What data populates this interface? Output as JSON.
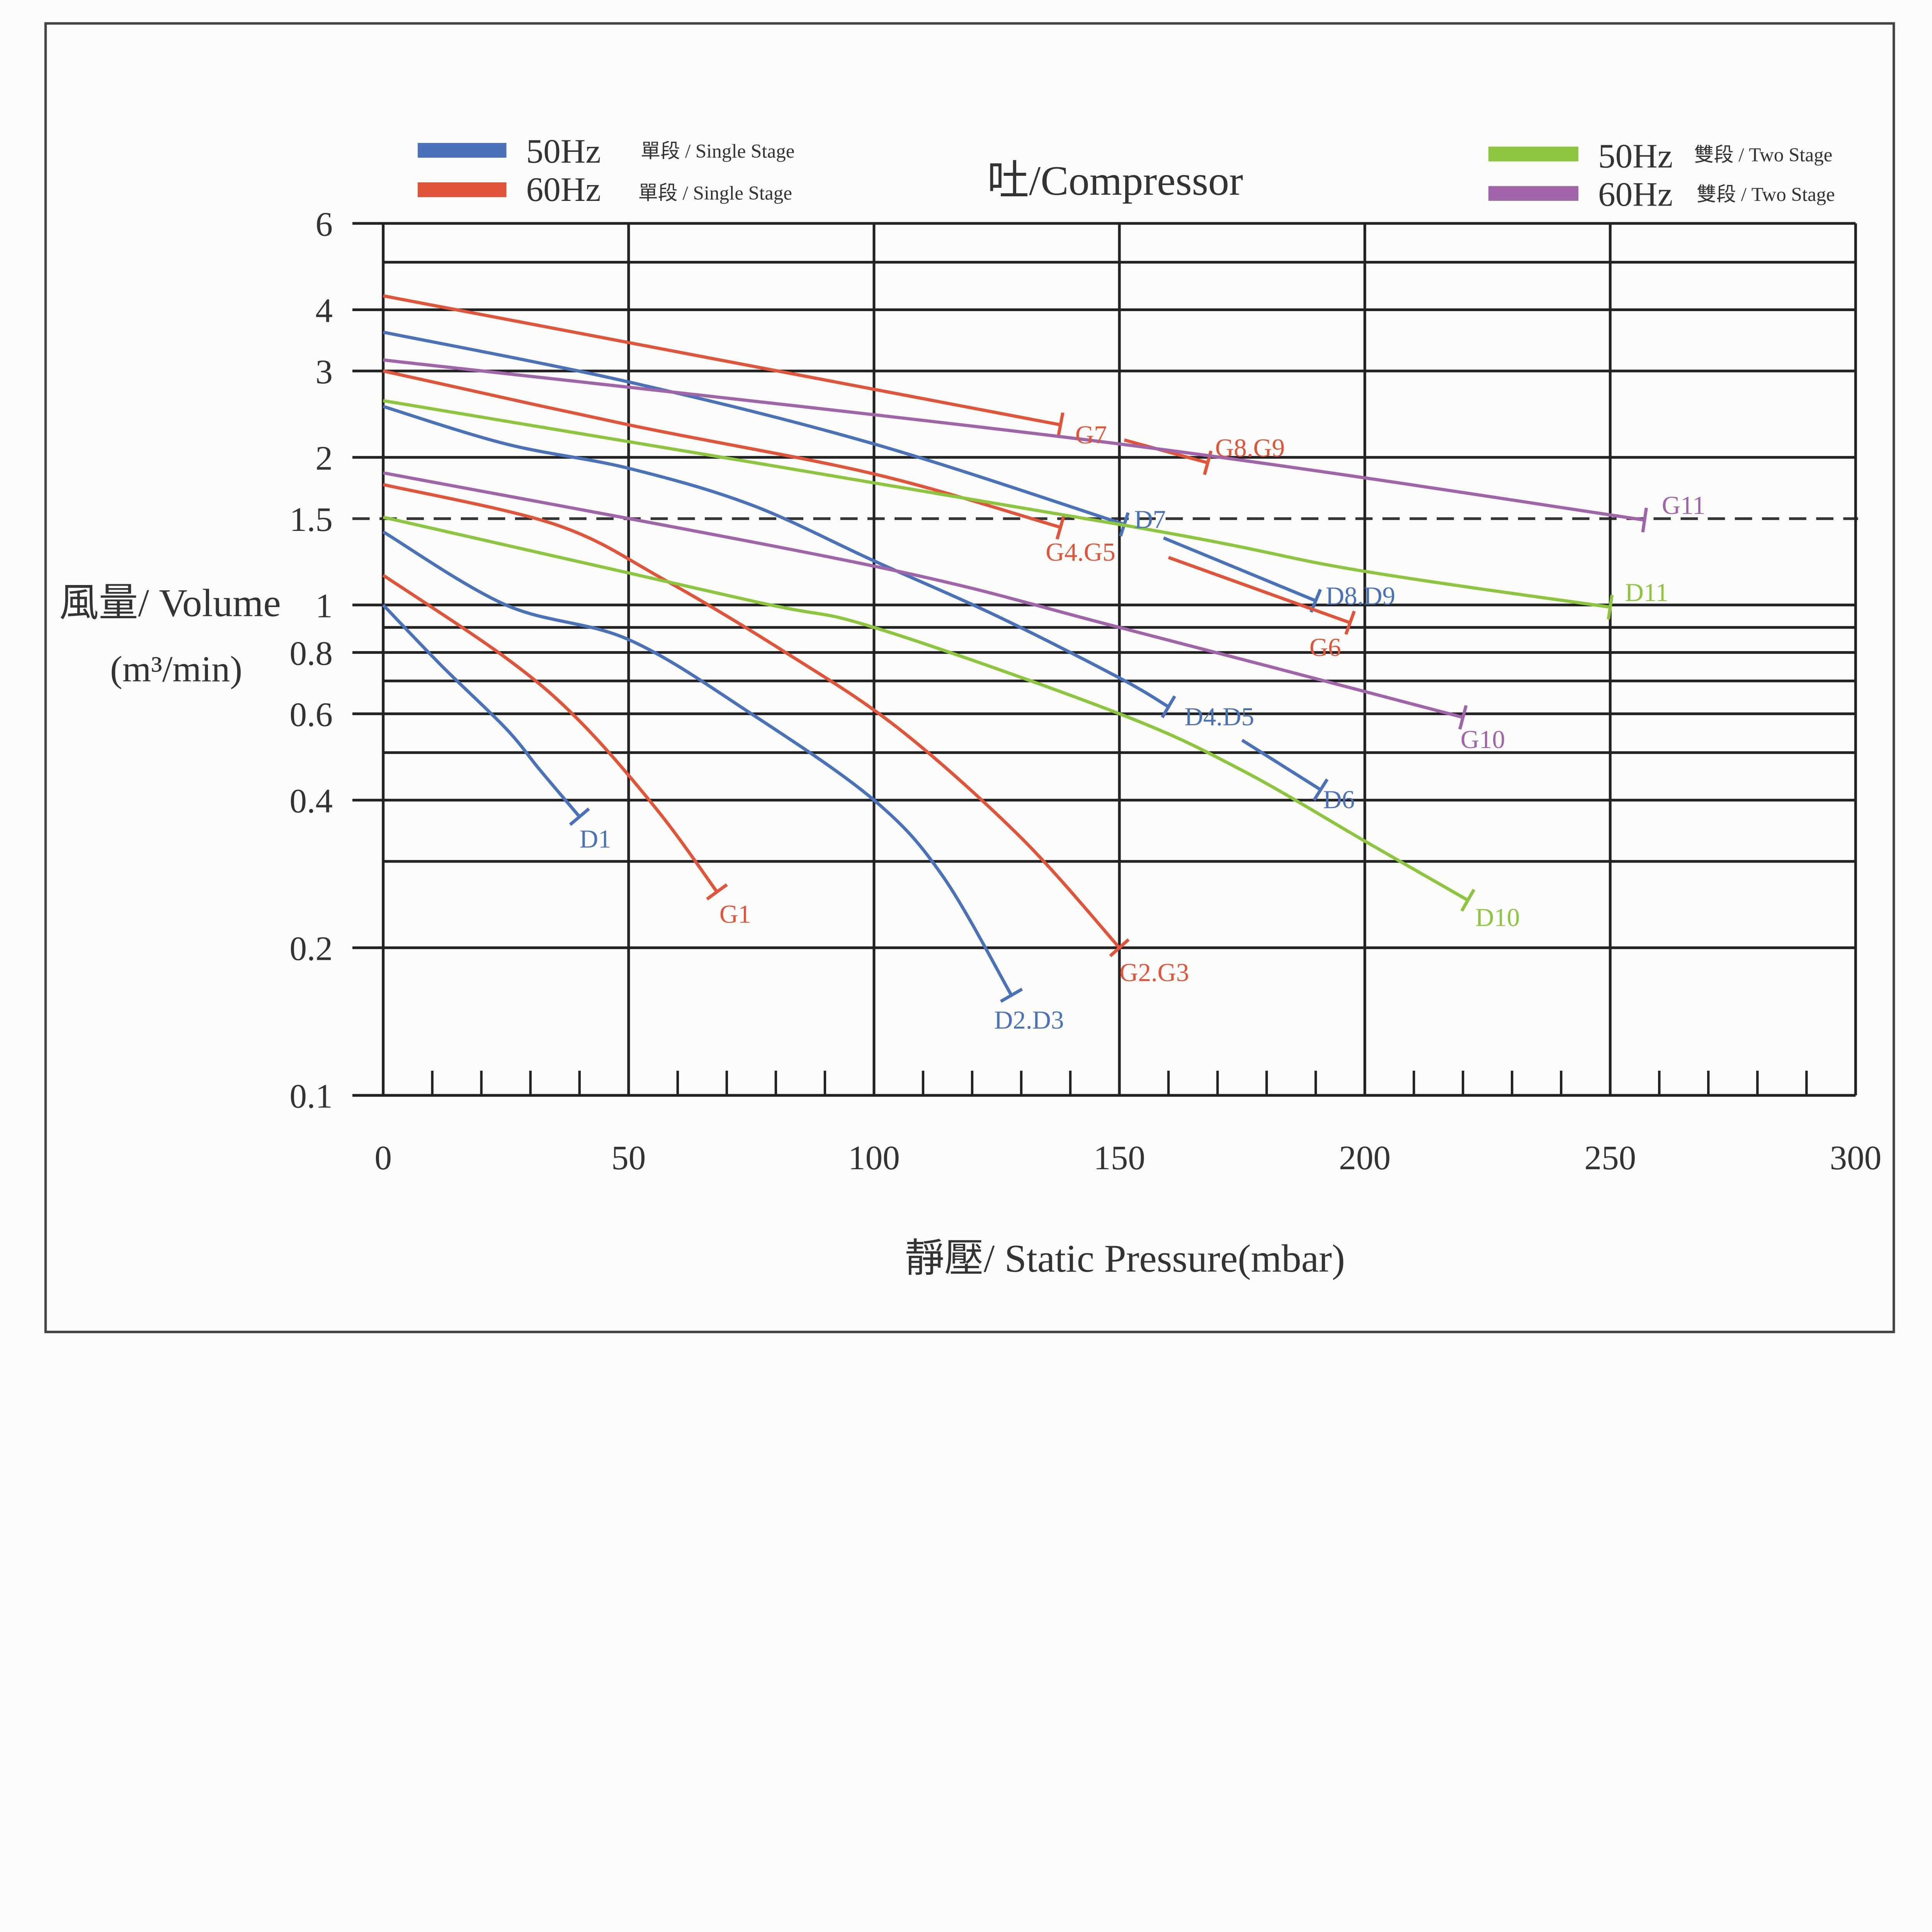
{
  "chart_data": {
    "type": "line",
    "title": "吐/Compressor",
    "xlabel": "靜壓/ Static Pressure(mbar)",
    "ylabel_line1": "風量/ Volume",
    "ylabel_line2": "(m³/min)",
    "xlim": [
      0,
      300
    ],
    "ylim": [
      0.1,
      6
    ],
    "yscale": "log",
    "grid": true,
    "x_ticks": [
      "0",
      "50",
      "100",
      "150",
      "200",
      "250",
      "300"
    ],
    "y_ticks": [
      "6",
      "4",
      "3",
      "2",
      "1.5",
      "1",
      "0.8",
      "0.6",
      "0.4",
      "0.2",
      "0.1"
    ],
    "reference_line": {
      "y": 1.5,
      "style": "dashed"
    },
    "legend": [
      {
        "freq": "50Hz",
        "stage": "單段 / Single Stage",
        "color": "#4a72b8",
        "position": "top-left"
      },
      {
        "freq": "60Hz",
        "stage": "單段 / Single Stage",
        "color": "#e0553a",
        "position": "top-left"
      },
      {
        "freq": "50Hz",
        "stage": "雙段 / Two Stage",
        "color": "#8cc63f",
        "position": "top-right"
      },
      {
        "freq": "60Hz",
        "stage": "雙段 / Two Stage",
        "color": "#a064a8",
        "position": "top-right"
      }
    ],
    "series": [
      {
        "name": "D1",
        "group": "50Hz Single",
        "x": [
          0,
          12,
          25,
          32,
          40
        ],
        "y": [
          1.0,
          0.75,
          0.56,
          0.46,
          0.37
        ]
      },
      {
        "name": "G1",
        "group": "60Hz Single",
        "x": [
          0,
          25,
          40,
          56,
          68
        ],
        "y": [
          1.15,
          0.78,
          0.58,
          0.38,
          0.26
        ]
      },
      {
        "name": "D2.D3",
        "group": "50Hz Single",
        "x": [
          0,
          25,
          50,
          75,
          100,
          114,
          128
        ],
        "y": [
          1.41,
          1.0,
          0.85,
          0.6,
          0.4,
          0.28,
          0.16
        ]
      },
      {
        "name": "G2.G3",
        "group": "60Hz Single",
        "x": [
          0,
          35,
          57,
          82,
          105,
          130,
          150
        ],
        "y": [
          1.76,
          1.46,
          1.13,
          0.8,
          0.56,
          0.335,
          0.2
        ]
      },
      {
        "name": "D4.D5",
        "group": "50Hz Single",
        "x": [
          0,
          25,
          50,
          75,
          100,
          125,
          150,
          160
        ],
        "y": [
          2.54,
          2.13,
          1.9,
          1.6,
          1.23,
          0.95,
          0.71,
          0.62
        ]
      },
      {
        "name": "G4.G5",
        "group": "60Hz Single",
        "x": [
          0,
          50,
          100,
          138
        ],
        "y": [
          3.0,
          2.33,
          1.85,
          1.44
        ]
      },
      {
        "name": "D7",
        "group": "50Hz Single",
        "x": [
          0,
          50,
          100,
          151
        ],
        "y": [
          3.6,
          2.85,
          2.13,
          1.46
        ]
      },
      {
        "name": "D8.D9",
        "group": "50Hz Single",
        "x": [
          159,
          190
        ],
        "y": [
          1.37,
          1.02
        ]
      },
      {
        "name": "G6",
        "group": "60Hz Single",
        "x": [
          160,
          197
        ],
        "y": [
          1.25,
          0.92
        ]
      },
      {
        "name": "G7",
        "group": "60Hz Single",
        "x": [
          0,
          138
        ],
        "y": [
          4.27,
          2.33
        ]
      },
      {
        "name": "G8.G9",
        "group": "60Hz Single",
        "x": [
          151,
          168
        ],
        "y": [
          2.17,
          1.95
        ]
      },
      {
        "name": "D6",
        "group": "50Hz Single",
        "x": [
          175,
          191
        ],
        "y": [
          0.53,
          0.42
        ]
      },
      {
        "name": "D11",
        "group": "50Hz Two",
        "x": [
          0,
          150,
          198,
          250
        ],
        "y": [
          2.61,
          1.46,
          1.18,
          0.99
        ]
      },
      {
        "name": "D10",
        "group": "50Hz Two",
        "x": [
          0,
          75,
          100,
          150,
          175,
          200,
          221
        ],
        "y": [
          1.51,
          1.02,
          0.9,
          0.6,
          0.46,
          0.33,
          0.25
        ]
      },
      {
        "name": "G11",
        "group": "60Hz Two",
        "x": [
          0,
          150,
          257
        ],
        "y": [
          3.16,
          2.13,
          1.49
        ]
      },
      {
        "name": "G10",
        "group": "60Hz Two",
        "x": [
          0,
          100,
          150,
          220
        ],
        "y": [
          1.86,
          1.2,
          0.9,
          0.59
        ]
      }
    ]
  }
}
